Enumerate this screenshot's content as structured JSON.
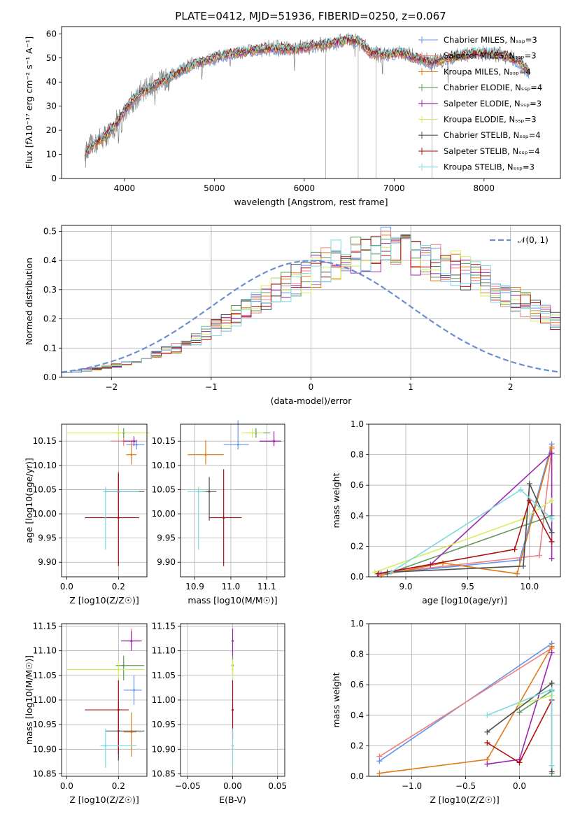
{
  "chart_data": [
    {
      "type": "line",
      "title": "PLATE=0412, MJD=51936, FIBERID=0250, z=0.067",
      "xlabel": "wavelength [Angstrom, rest frame]",
      "ylabel": "Flux [fλ10⁻¹⁷ erg cm⁻² s⁻¹ A⁻¹]",
      "xlim": [
        3300,
        8850
      ],
      "ylim": [
        0,
        63
      ],
      "xticks": [
        "4000",
        "5000",
        "6000",
        "7000",
        "8000"
      ],
      "yticks": [
        "0",
        "10",
        "20",
        "30",
        "40",
        "50",
        "60"
      ],
      "grid": false,
      "legend_position": "top-right",
      "continuum": {
        "x": [
          3560,
          3650,
          3800,
          3900,
          4000,
          4100,
          4200,
          4300,
          4500,
          4700,
          4900,
          5100,
          5300,
          5500,
          5700,
          5900,
          6100,
          6300,
          6500,
          6600,
          6750,
          6900,
          7100,
          7200,
          7400,
          7600,
          7800,
          8000,
          8200,
          8400,
          8500
        ],
        "y": [
          10,
          14,
          18,
          22,
          28,
          33,
          36,
          38,
          42,
          46,
          49,
          51,
          52.5,
          53.5,
          54,
          53.5,
          55,
          56,
          57.5,
          57,
          52,
          51.5,
          52,
          50.5,
          48,
          50,
          51.5,
          52,
          51.5,
          48,
          44
        ]
      },
      "series": [
        {
          "name": "Chabrier MILES, N_SSP=3",
          "color": "#6495ed"
        },
        {
          "name": "Salpeter MILES, N_SSP=3",
          "color": "#f08080"
        },
        {
          "name": "Kroupa MILES, N_SSP=4",
          "color": "#e07b18"
        },
        {
          "name": "Chabrier ELODIE, N_SSP=4",
          "color": "#5f9b5f"
        },
        {
          "name": "Salpeter ELODIE, N_SSP=3",
          "color": "#9c27b0"
        },
        {
          "name": "Kroupa ELODIE, N_SSP=3",
          "color": "#d4ee5e"
        },
        {
          "name": "Chabrier STELIB, N_SSP=4",
          "color": "#505050"
        },
        {
          "name": "Salpeter STELIB, N_SSP=4",
          "color": "#b01010"
        },
        {
          "name": "Kroupa STELIB, N_SSP=3",
          "color": "#7fd8e0"
        }
      ],
      "data_color": "#808080"
    },
    {
      "type": "histogram",
      "xlabel": "(data-model)/error",
      "ylabel": "Normed distribution",
      "xlim": [
        -2.5,
        2.5
      ],
      "ylim": [
        0,
        0.52
      ],
      "xticks": [
        "−2",
        "−1",
        "0",
        "1",
        "2"
      ],
      "yticks": [
        "0.0",
        "0.1",
        "0.2",
        "0.3",
        "0.4",
        "0.5"
      ],
      "grid": true,
      "bin_width": 0.1,
      "bin_start": -2.5,
      "reference_curve": {
        "name": "𝒩(0, 1)",
        "type": "normal",
        "mean": 0,
        "sigma": 1,
        "color": "#6a8fd0",
        "style": "dashed"
      },
      "legend_position": "top-right",
      "base_values": [
        0.02,
        0.02,
        0.025,
        0.03,
        0.035,
        0.04,
        0.05,
        0.06,
        0.07,
        0.08,
        0.09,
        0.1,
        0.12,
        0.13,
        0.15,
        0.17,
        0.19,
        0.21,
        0.23,
        0.25,
        0.27,
        0.29,
        0.31,
        0.33,
        0.35,
        0.37,
        0.38,
        0.4,
        0.41,
        0.42,
        0.42,
        0.43,
        0.44,
        0.43,
        0.42,
        0.41,
        0.4,
        0.39,
        0.38,
        0.37,
        0.36,
        0.35,
        0.33,
        0.31,
        0.29,
        0.27,
        0.25,
        0.23,
        0.21,
        0.19,
        0.17,
        0.15,
        0.13,
        0.11,
        0.1,
        0.08,
        0.07,
        0.06,
        0.05,
        0.04,
        0.04,
        0.035,
        0.03,
        0.03,
        0.03,
        0.02,
        0.02,
        0.02,
        0.015,
        0.015
      ]
    },
    {
      "type": "scatter",
      "xlabel": "Z [log10(Z/Z☉)]",
      "ylabel": "age  [log10(age/yr)]",
      "xlim": [
        -0.02,
        0.31
      ],
      "ylim": [
        9.87,
        10.185
      ],
      "xticks": [
        "0.0",
        "0.2"
      ],
      "yticks": [
        "9.90",
        "9.95",
        "10.00",
        "10.05",
        "10.10",
        "10.15"
      ],
      "grid": true,
      "points": [
        {
          "x": 0.27,
          "y": 10.143,
          "xerr": [
            0.04,
            0.03
          ],
          "yerr": [
            0.01,
            0.01
          ],
          "color": "#6495ed"
        },
        {
          "x": 0.22,
          "y": 10.15,
          "xerr": [
            0.05,
            0.03
          ],
          "yerr": [
            0.01,
            0.01
          ],
          "color": "#f08080"
        },
        {
          "x": 0.25,
          "y": 10.122,
          "xerr": [
            0.02,
            0.02
          ],
          "yerr": [
            0.02,
            0.03
          ],
          "color": "#e07b18"
        },
        {
          "x": 0.22,
          "y": 10.167,
          "xerr": [
            0.05,
            0.08
          ],
          "yerr": [
            0.01,
            0.01
          ],
          "color": "#5f9b5f"
        },
        {
          "x": 0.26,
          "y": 10.15,
          "xerr": [
            0.04,
            0.01
          ],
          "yerr": [
            0.01,
            0.01
          ],
          "color": "#9c27b0"
        },
        {
          "x": 0.2,
          "y": 10.167,
          "xerr": [
            0.2,
            0.12
          ],
          "yerr": [
            0.01,
            0.01
          ],
          "color": "#d4ee5e"
        },
        {
          "x": 0.2,
          "y": 10.046,
          "xerr": [
            0.05,
            0.1
          ],
          "yerr": [
            0.04,
            0.04
          ],
          "color": "#505050"
        },
        {
          "x": 0.2,
          "y": 9.992,
          "xerr": [
            0.13,
            0.08
          ],
          "yerr": [
            0.1,
            0.09
          ],
          "color": "#b01010"
        },
        {
          "x": 0.15,
          "y": 10.046,
          "xerr": [
            0.01,
            0.13
          ],
          "yerr": [
            0.12,
            0.01
          ],
          "color": "#7fd8e0"
        }
      ]
    },
    {
      "type": "scatter",
      "xlabel": "mass [log10(M/M☉)]",
      "ylabel": "",
      "xlim": [
        10.86,
        11.15
      ],
      "ylim": [
        9.87,
        10.185
      ],
      "xticks": [
        "10.9",
        "11.0",
        "11.1"
      ],
      "yticks": [
        "9.90",
        "9.95",
        "10.00",
        "10.05",
        "10.10",
        "10.15"
      ],
      "grid": true,
      "points": [
        {
          "x": 11.02,
          "y": 10.143,
          "xerr": [
            0.04,
            0.03
          ],
          "yerr": [
            0.01,
            0.05
          ],
          "color": "#6495ed"
        },
        {
          "x": 11.12,
          "y": 10.15,
          "xerr": [
            0.04,
            0.01
          ],
          "yerr": [
            0.01,
            0.01
          ],
          "color": "#f08080"
        },
        {
          "x": 10.93,
          "y": 10.122,
          "xerr": [
            0.05,
            0.05
          ],
          "yerr": [
            0.02,
            0.03
          ],
          "color": "#e07b18"
        },
        {
          "x": 11.07,
          "y": 10.167,
          "xerr": [
            0.03,
            0.04
          ],
          "yerr": [
            0.01,
            0.01
          ],
          "color": "#5f9b5f"
        },
        {
          "x": 11.12,
          "y": 10.15,
          "xerr": [
            0.04,
            0.02
          ],
          "yerr": [
            0.01,
            0.02
          ],
          "color": "#9c27b0"
        },
        {
          "x": 11.06,
          "y": 10.167,
          "xerr": [
            0.03,
            0.03
          ],
          "yerr": [
            0.01,
            0.01
          ],
          "color": "#d4ee5e"
        },
        {
          "x": 10.94,
          "y": 10.046,
          "xerr": [
            0.02,
            0.02
          ],
          "yerr": [
            0.06,
            0.03
          ],
          "color": "#505050"
        },
        {
          "x": 10.98,
          "y": 9.992,
          "xerr": [
            0.04,
            0.05
          ],
          "yerr": [
            0.1,
            0.1
          ],
          "color": "#b01010"
        },
        {
          "x": 10.91,
          "y": 10.046,
          "xerr": [
            0.03,
            0.02
          ],
          "yerr": [
            0.12,
            0.01
          ],
          "color": "#7fd8e0"
        }
      ]
    },
    {
      "type": "line",
      "xlabel": "age  [log10(age/yr)]",
      "ylabel": "mass weight",
      "xlim": [
        8.7,
        10.25
      ],
      "ylim": [
        0,
        1.0
      ],
      "xticks": [
        "9.0",
        "9.5",
        "10.0"
      ],
      "yticks": [
        "0.0",
        "0.2",
        "0.4",
        "0.6",
        "0.8",
        "1.0"
      ],
      "grid": true,
      "series": [
        {
          "color": "#6495ed",
          "x": [
            8.8,
            9.92,
            10.18
          ],
          "y": [
            0.02,
            0.11,
            0.87
          ]
        },
        {
          "color": "#f08080",
          "x": [
            8.78,
            10.08,
            10.18
          ],
          "y": [
            0.02,
            0.14,
            0.84
          ]
        },
        {
          "color": "#e07b18",
          "x": [
            8.8,
            9.3,
            9.9,
            10.18
          ],
          "y": [
            0.01,
            0.09,
            0.02,
            0.85
          ]
        },
        {
          "color": "#5f9b5f",
          "x": [
            8.85,
            10.18
          ],
          "y": [
            0.02,
            0.4
          ]
        },
        {
          "color": "#9c27b0",
          "x": [
            8.77,
            9.2,
            10.18,
            10.18
          ],
          "y": [
            0.02,
            0.08,
            0.81,
            0.12
          ]
        },
        {
          "color": "#d4ee5e",
          "x": [
            8.75,
            9.95,
            10.18
          ],
          "y": [
            0.03,
            0.38,
            0.5
          ]
        },
        {
          "color": "#505050",
          "x": [
            8.85,
            9.95,
            10.0,
            10.18
          ],
          "y": [
            0.03,
            0.07,
            0.61,
            0.29
          ]
        },
        {
          "color": "#b01010",
          "x": [
            8.78,
            9.88,
            10.0,
            10.18
          ],
          "y": [
            0.02,
            0.18,
            0.5,
            0.23
          ]
        },
        {
          "color": "#7fd8e0",
          "x": [
            8.88,
            9.93,
            10.18
          ],
          "y": [
            0.03,
            0.57,
            0.38
          ]
        }
      ]
    },
    {
      "type": "scatter",
      "xlabel": "Z [log10(Z/Z☉)]",
      "ylabel": "mass [log10(M/M☉)]",
      "xlim": [
        -0.02,
        0.31
      ],
      "ylim": [
        10.845,
        11.155
      ],
      "xticks": [
        "0.0",
        "0.2"
      ],
      "yticks": [
        "10.85",
        "10.90",
        "10.95",
        "11.00",
        "11.05",
        "11.10",
        "11.15"
      ],
      "grid": true,
      "points": [
        {
          "x": 0.26,
          "y": 11.02,
          "xerr": [
            0.04,
            0.03
          ],
          "yerr": [
            0.03,
            0.03
          ],
          "color": "#6495ed"
        },
        {
          "x": 0.25,
          "y": 11.12,
          "xerr": [
            0.02,
            0.03
          ],
          "yerr": [
            0.01,
            0.025
          ],
          "color": "#f08080"
        },
        {
          "x": 0.25,
          "y": 10.935,
          "xerr": [
            0.03,
            0.02
          ],
          "yerr": [
            0.05,
            0.04
          ],
          "color": "#e07b18"
        },
        {
          "x": 0.22,
          "y": 11.07,
          "xerr": [
            0.03,
            0.08
          ],
          "yerr": [
            0.03,
            0.02
          ],
          "color": "#5f9b5f"
        },
        {
          "x": 0.25,
          "y": 11.12,
          "xerr": [
            0.04,
            0.04
          ],
          "yerr": [
            0.02,
            0.02
          ],
          "color": "#9c27b0"
        },
        {
          "x": 0.2,
          "y": 11.062,
          "xerr": [
            0.2,
            0.1
          ],
          "yerr": [
            0.02,
            0.02
          ],
          "color": "#d4ee5e"
        },
        {
          "x": 0.2,
          "y": 10.937,
          "xerr": [
            0.05,
            0.1
          ],
          "yerr": [
            0.06,
            0.06
          ],
          "color": "#505050"
        },
        {
          "x": 0.2,
          "y": 10.98,
          "xerr": [
            0.13,
            0.04
          ],
          "yerr": [
            0.09,
            0.06
          ],
          "color": "#b01010"
        },
        {
          "x": 0.15,
          "y": 10.907,
          "xerr": [
            0.02,
            0.12
          ],
          "yerr": [
            0.045,
            0.035
          ],
          "color": "#7fd8e0"
        }
      ]
    },
    {
      "type": "scatter",
      "xlabel": "E(B-V)",
      "ylabel": "",
      "xlim": [
        -0.058,
        0.058
      ],
      "ylim": [
        10.845,
        11.155
      ],
      "xticks": [
        "−0.05",
        "0.00",
        "0.05"
      ],
      "yticks": [
        "10.85",
        "10.90",
        "10.95",
        "11.00",
        "11.05",
        "11.10",
        "11.15"
      ],
      "grid": true,
      "points": [
        {
          "x": 0,
          "y": 11.12,
          "xerr": [
            0,
            0
          ],
          "yerr": [
            0.03,
            0.025
          ],
          "color": "#9c27b0"
        },
        {
          "x": 0,
          "y": 11.07,
          "xerr": [
            0,
            0
          ],
          "yerr": [
            0.02,
            0.02
          ],
          "color": "#5f9b5f"
        },
        {
          "x": 0,
          "y": 11.062,
          "xerr": [
            0,
            0
          ],
          "yerr": [
            0.02,
            0.02
          ],
          "color": "#d4ee5e"
        },
        {
          "x": 0,
          "y": 10.98,
          "xerr": [
            0,
            0
          ],
          "yerr": [
            0.06,
            0.06
          ],
          "color": "#b01010"
        },
        {
          "x": 0,
          "y": 10.907,
          "xerr": [
            0,
            0
          ],
          "yerr": [
            0.045,
            0.035
          ],
          "color": "#7fd8e0"
        }
      ]
    },
    {
      "type": "line",
      "xlabel": "Z [log10(Z/Z☉)]",
      "ylabel": "mass weight",
      "xlim": [
        -1.4,
        0.38
      ],
      "ylim": [
        0,
        1.0
      ],
      "xticks": [
        "−1.0",
        "−0.5",
        "0.0"
      ],
      "yticks": [
        "0.0",
        "0.2",
        "0.4",
        "0.6",
        "0.8",
        "1.0"
      ],
      "grid": true,
      "series": [
        {
          "color": "#6495ed",
          "x": [
            -1.3,
            0.3
          ],
          "y": [
            0.1,
            0.87
          ]
        },
        {
          "color": "#f08080",
          "x": [
            -1.3,
            0.3
          ],
          "y": [
            0.13,
            0.84
          ]
        },
        {
          "color": "#e07b18",
          "x": [
            -1.3,
            -0.3,
            0.3
          ],
          "y": [
            0.02,
            0.11,
            0.85
          ]
        },
        {
          "color": "#5f9b5f",
          "x": [
            0.0,
            0.3,
            0.3
          ],
          "y": [
            0.42,
            0.56,
            0.02
          ]
        },
        {
          "color": "#9c27b0",
          "x": [
            -0.3,
            0.0,
            0.3
          ],
          "y": [
            0.08,
            0.11,
            0.81
          ]
        },
        {
          "color": "#d4ee5e",
          "x": [
            0.0,
            0.3
          ],
          "y": [
            0.47,
            0.53
          ]
        },
        {
          "color": "#505050",
          "x": [
            -0.3,
            0.3,
            0.3
          ],
          "y": [
            0.29,
            0.61,
            0.03
          ]
        },
        {
          "color": "#b01010",
          "x": [
            -0.3,
            0.0,
            0.3
          ],
          "y": [
            0.22,
            0.09,
            0.5
          ]
        },
        {
          "color": "#7fd8e0",
          "x": [
            -0.3,
            0.3,
            0.3
          ],
          "y": [
            0.4,
            0.57,
            0.07
          ]
        }
      ]
    }
  ]
}
